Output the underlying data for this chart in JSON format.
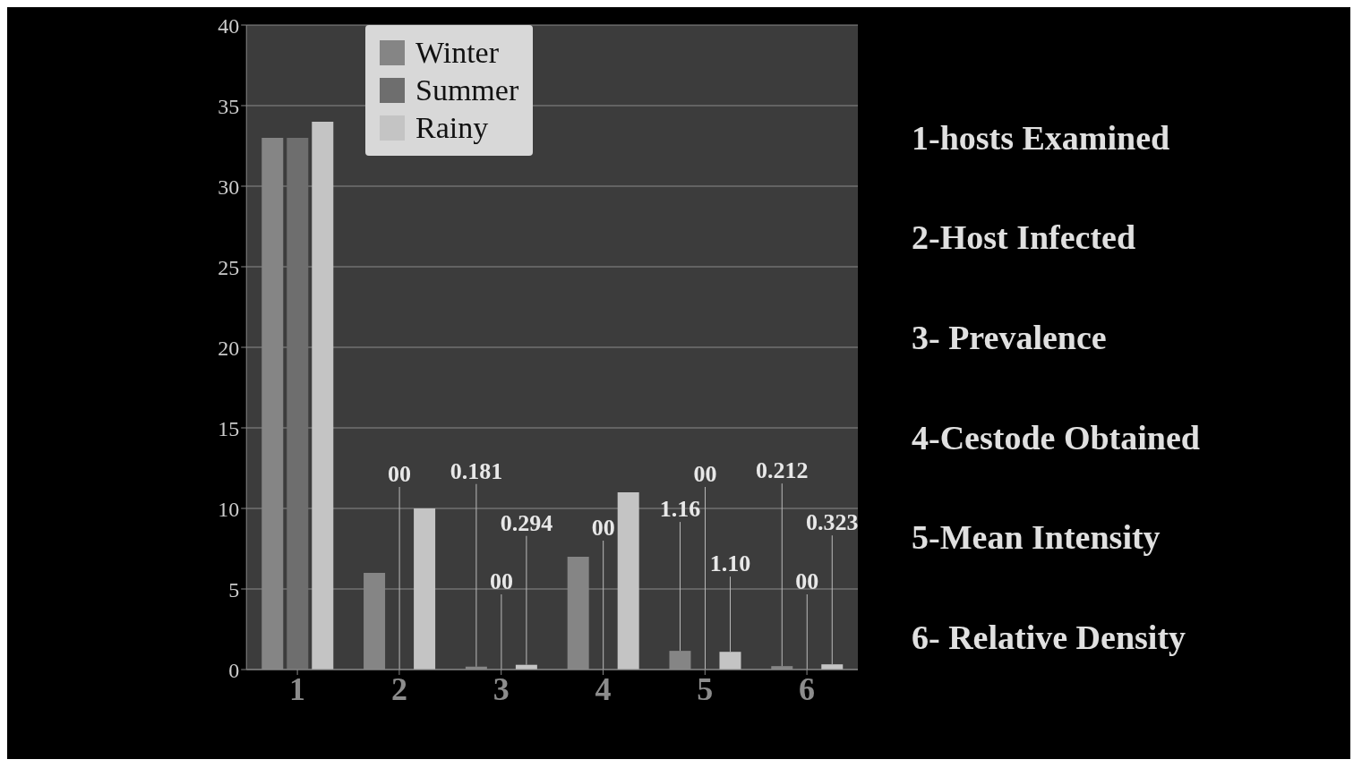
{
  "chart_data": {
    "type": "bar",
    "categories": [
      "1",
      "2",
      "3",
      "4",
      "5",
      "6"
    ],
    "series": [
      {
        "name": "Winter",
        "color": "#858585",
        "values": [
          33,
          6,
          0.181,
          7,
          1.16,
          0.212
        ],
        "value_labels": [
          null,
          null,
          "0.181",
          null,
          "1.16",
          "0.212"
        ]
      },
      {
        "name": "Summer",
        "color": "#6e6e6e",
        "values": [
          33,
          0,
          0,
          0,
          0,
          0
        ],
        "value_labels": [
          null,
          "00",
          "00",
          "00",
          "00",
          "00"
        ]
      },
      {
        "name": "Rainy",
        "color": "#c4c4c4",
        "values": [
          34,
          10,
          0.294,
          11,
          1.1,
          0.323
        ],
        "value_labels": [
          null,
          null,
          "0.294",
          null,
          "1.10",
          "0.323"
        ]
      }
    ],
    "ylim": [
      0,
      40
    ],
    "yticks": [
      0,
      5,
      10,
      15,
      20,
      25,
      30,
      35,
      40
    ],
    "grid": "y",
    "legend": "top left",
    "annotations": [
      "1-hosts Examined",
      "2-Host Infected",
      "3- Prevalence",
      "4-Cestode Obtained",
      "5-Mean Intensity",
      "6- Relative Density"
    ]
  }
}
